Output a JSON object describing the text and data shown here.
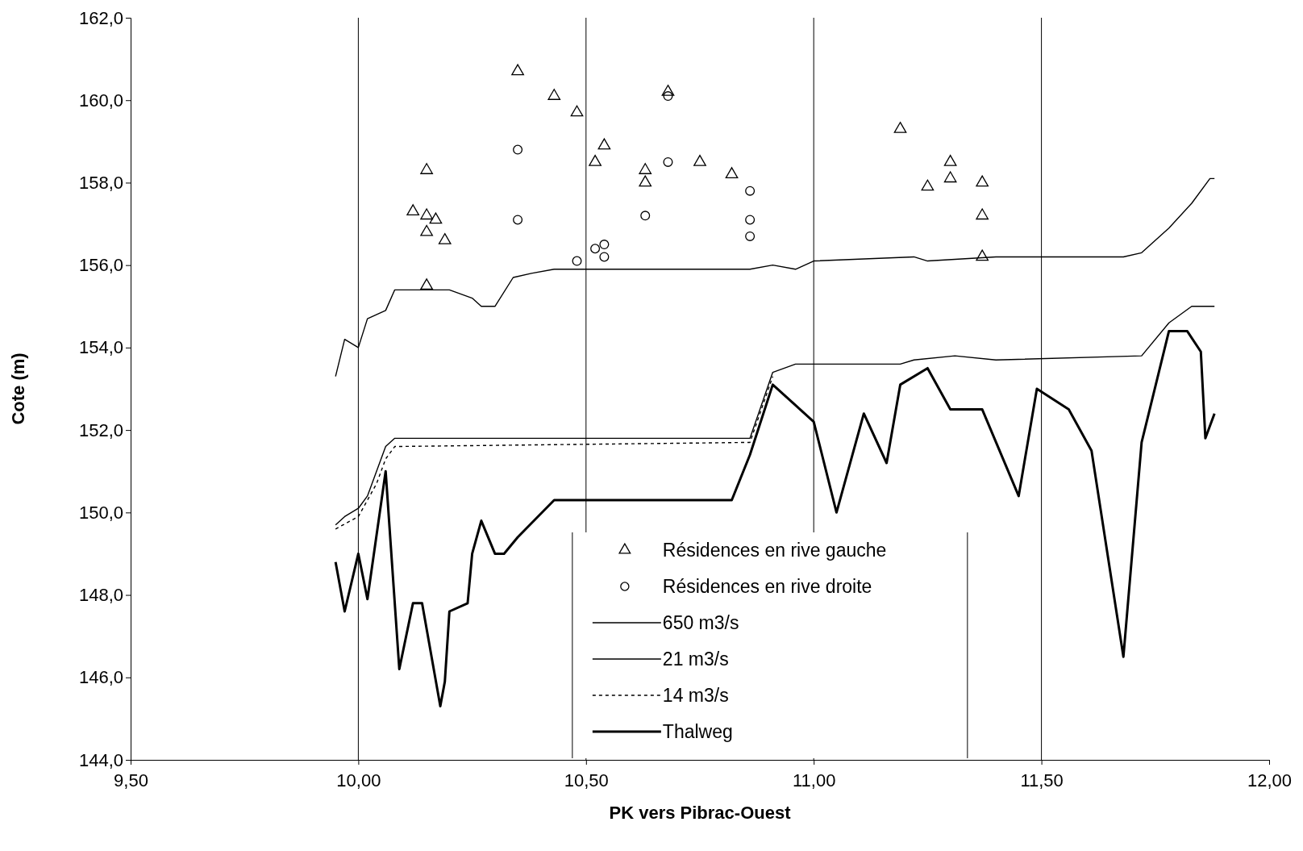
{
  "chart_data": {
    "type": "line",
    "xlabel": "PK vers Pibrac-Ouest",
    "ylabel": "Cote (m)",
    "xlim": [
      9.5,
      12
    ],
    "ylim": [
      144,
      162
    ],
    "xticks": [
      {
        "value": 9.5,
        "label": "9,50"
      },
      {
        "value": 10,
        "label": "10,00"
      },
      {
        "value": 10.5,
        "label": "10,50"
      },
      {
        "value": 11,
        "label": "11,00"
      },
      {
        "value": 11.5,
        "label": "11,50"
      },
      {
        "value": 12,
        "label": "12,00"
      }
    ],
    "yticks": [
      {
        "value": 144,
        "label": "144,0"
      },
      {
        "value": 146,
        "label": "146,0"
      },
      {
        "value": 148,
        "label": "148,0"
      },
      {
        "value": 150,
        "label": "150,0"
      },
      {
        "value": 152,
        "label": "152,0"
      },
      {
        "value": 154,
        "label": "154,0"
      },
      {
        "value": 156,
        "label": "156,0"
      },
      {
        "value": 158,
        "label": "158,0"
      },
      {
        "value": 160,
        "label": "160,0"
      },
      {
        "value": 162,
        "label": "162,0"
      }
    ],
    "grid": "x",
    "legend": "bottom",
    "series": [
      {
        "name": "Résidences en rive gauche",
        "type": "scatter",
        "marker": "triangle",
        "color": "#000000",
        "x": [
          10.12,
          10.15,
          10.15,
          10.15,
          10.17,
          10.19,
          10.15,
          10.35,
          10.43,
          10.48,
          10.52,
          10.54,
          10.63,
          10.63,
          10.68,
          10.75,
          10.82,
          11.19,
          11.25,
          11.3,
          11.3,
          11.37,
          11.37,
          11.37
        ],
        "values": [
          157.3,
          158.3,
          157.2,
          156.8,
          157.1,
          156.6,
          155.5,
          160.7,
          160.1,
          159.7,
          158.5,
          158.9,
          158.3,
          158.0,
          160.2,
          158.5,
          158.2,
          159.3,
          157.9,
          158.5,
          158.1,
          158.0,
          157.2,
          156.2
        ]
      },
      {
        "name": "Résidences en rive droite",
        "type": "scatter",
        "marker": "circle",
        "color": "#000000",
        "x": [
          10.35,
          10.35,
          10.48,
          10.52,
          10.54,
          10.54,
          10.63,
          10.68,
          10.68,
          10.86,
          10.86,
          10.86
        ],
        "values": [
          158.8,
          157.1,
          156.1,
          156.4,
          156.5,
          156.2,
          157.2,
          160.1,
          158.5,
          157.8,
          157.1,
          156.7
        ]
      },
      {
        "name": "650 m3/s",
        "line_style": "solid",
        "color": "#000000",
        "x": [
          9.95,
          9.97,
          10.0,
          10.02,
          10.06,
          10.08,
          10.16,
          10.2,
          10.25,
          10.27,
          10.3,
          10.34,
          10.38,
          10.43,
          10.49,
          10.6,
          10.67,
          10.76,
          10.86,
          10.91,
          10.96,
          11.0,
          11.22,
          11.25,
          11.4,
          11.68,
          11.72,
          11.78,
          11.83,
          11.87,
          11.88
        ],
        "values": [
          153.3,
          154.2,
          154.0,
          154.7,
          154.9,
          155.4,
          155.4,
          155.4,
          155.2,
          155.0,
          155.0,
          155.7,
          155.8,
          155.9,
          155.9,
          155.9,
          155.9,
          155.9,
          155.9,
          156.0,
          155.9,
          156.1,
          156.2,
          156.1,
          156.2,
          156.2,
          156.3,
          156.9,
          157.5,
          158.1,
          158.1
        ]
      },
      {
        "name": "21 m3/s",
        "line_style": "solid",
        "color": "#000000",
        "x": [
          9.95,
          9.97,
          10.0,
          10.02,
          10.06,
          10.08,
          10.86,
          10.91,
          10.96,
          11.0,
          11.19,
          11.22,
          11.31,
          11.4,
          11.72,
          11.78,
          11.83,
          11.87,
          11.88
        ],
        "values": [
          149.7,
          149.9,
          150.1,
          150.4,
          151.6,
          151.8,
          151.8,
          153.4,
          153.6,
          153.6,
          153.6,
          153.7,
          153.8,
          153.7,
          153.8,
          154.6,
          155.0,
          155.0,
          155.0
        ]
      },
      {
        "name": "14 m3/s",
        "line_style": "dashed",
        "color": "#000000",
        "x": [
          9.95,
          10.0,
          10.04,
          10.06,
          10.08,
          10.86,
          10.91
        ],
        "values": [
          149.6,
          149.9,
          150.7,
          151.3,
          151.6,
          151.7,
          153.3
        ]
      },
      {
        "name": "Thalweg",
        "line_style": "solid",
        "color": "#000000",
        "x": [
          9.95,
          9.97,
          10.0,
          10.02,
          10.06,
          10.09,
          10.12,
          10.14,
          10.18,
          10.19,
          10.2,
          10.24,
          10.25,
          10.27,
          10.3,
          10.32,
          10.35,
          10.43,
          10.48,
          10.82,
          10.86,
          10.91,
          10.96,
          11.0,
          11.05,
          11.11,
          11.16,
          11.19,
          11.25,
          11.3,
          11.37,
          11.45,
          11.49,
          11.56,
          11.61,
          11.68,
          11.72,
          11.78,
          11.82,
          11.85,
          11.86,
          11.88
        ],
        "values": [
          148.8,
          147.6,
          149.0,
          147.9,
          151.0,
          146.2,
          147.8,
          147.8,
          145.3,
          145.9,
          147.6,
          147.8,
          149.0,
          149.8,
          149.0,
          149.0,
          149.4,
          150.3,
          150.3,
          150.3,
          151.4,
          153.1,
          152.6,
          152.2,
          150.0,
          152.4,
          151.2,
          153.1,
          153.5,
          152.5,
          152.5,
          150.4,
          153.0,
          152.5,
          151.5,
          146.5,
          151.7,
          154.4,
          154.4,
          153.9,
          151.8,
          152.4
        ]
      }
    ]
  }
}
